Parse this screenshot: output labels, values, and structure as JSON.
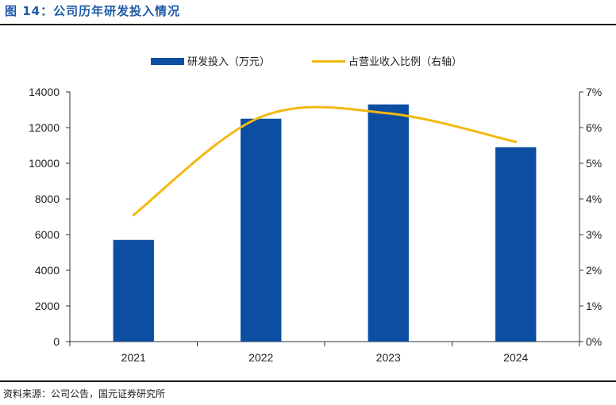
{
  "header": {
    "title": "图 14：公司历年研发投入情况"
  },
  "footer": {
    "source": "资料来源：公司公告，国元证券研究所"
  },
  "chart_data": {
    "type": "bar",
    "categories": [
      "2021",
      "2022",
      "2023",
      "2024"
    ],
    "series": [
      {
        "name": "研发投入（万元）",
        "type": "bar",
        "axis": "left",
        "values": [
          5700,
          12500,
          13300,
          10900
        ],
        "color": "#0b4ea2"
      },
      {
        "name": "占营业收入比例（右轴）",
        "type": "line",
        "axis": "right",
        "values": [
          3.55,
          6.3,
          6.4,
          5.6
        ],
        "color": "#f2b90f"
      }
    ],
    "ylim": [
      0,
      14000
    ],
    "yticks": [
      "0",
      "2000",
      "4000",
      "6000",
      "8000",
      "10000",
      "12000",
      "14000"
    ],
    "y2lim": [
      0,
      7
    ],
    "y2ticks": [
      "0%",
      "1%",
      "2%",
      "3%",
      "4%",
      "5%",
      "6%",
      "7%"
    ],
    "legend": "top-center",
    "grid": false
  }
}
